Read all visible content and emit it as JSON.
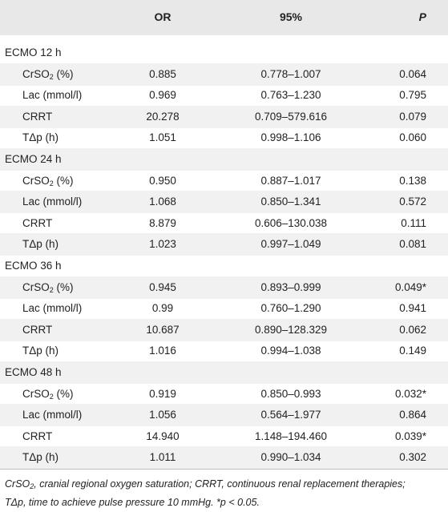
{
  "table": {
    "headers": {
      "or": "OR",
      "ci": "95%",
      "p": "P"
    },
    "rows": [
      {
        "kind": "group",
        "label": "ECMO 12 h"
      },
      {
        "kind": "sub",
        "label": "CrSO2 (%)",
        "or": "0.885",
        "ci": "0.778–1.007",
        "p": "0.064"
      },
      {
        "kind": "sub",
        "label": "Lac (mmol/l)",
        "or": "0.969",
        "ci": "0.763–1.230",
        "p": "0.795"
      },
      {
        "kind": "sub",
        "label": "CRRT",
        "or": "20.278",
        "ci": "0.709–579.616",
        "p": "0.079"
      },
      {
        "kind": "sub",
        "label": "TΔp (h)",
        "or": "1.051",
        "ci": "0.998–1.106",
        "p": "0.060"
      },
      {
        "kind": "group",
        "label": "ECMO 24 h"
      },
      {
        "kind": "sub",
        "label": "CrSO2 (%)",
        "or": "0.950",
        "ci": "0.887–1.017",
        "p": "0.138"
      },
      {
        "kind": "sub",
        "label": "Lac (mmol/l)",
        "or": "1.068",
        "ci": "0.850–1.341",
        "p": "0.572"
      },
      {
        "kind": "sub",
        "label": "CRRT",
        "or": "8.879",
        "ci": "0.606–130.038",
        "p": "0.111"
      },
      {
        "kind": "sub",
        "label": "TΔp (h)",
        "or": "1.023",
        "ci": "0.997–1.049",
        "p": "0.081"
      },
      {
        "kind": "group",
        "label": "ECMO 36 h"
      },
      {
        "kind": "sub",
        "label": "CrSO2 (%)",
        "or": "0.945",
        "ci": "0.893–0.999",
        "p": "0.049*"
      },
      {
        "kind": "sub",
        "label": "Lac (mmol/l)",
        "or": "0.99",
        "ci": "0.760–1.290",
        "p": "0.941"
      },
      {
        "kind": "sub",
        "label": "CRRT",
        "or": "10.687",
        "ci": "0.890–128.329",
        "p": "0.062"
      },
      {
        "kind": "sub",
        "label": "TΔp (h)",
        "or": "1.016",
        "ci": "0.994–1.038",
        "p": "0.149"
      },
      {
        "kind": "group",
        "label": "ECMO 48 h"
      },
      {
        "kind": "sub",
        "label": "CrSO2 (%)",
        "or": "0.919",
        "ci": "0.850–0.993",
        "p": "0.032*"
      },
      {
        "kind": "sub",
        "label": "Lac (mmol/l)",
        "or": "1.056",
        "ci": "0.564–1.977",
        "p": "0.864"
      },
      {
        "kind": "sub",
        "label": "CRRT",
        "or": "14.940",
        "ci": "1.148–194.460",
        "p": "0.039*"
      },
      {
        "kind": "sub",
        "label": "TΔp (h)",
        "or": "1.011",
        "ci": "0.990–1.034",
        "p": "0.302"
      }
    ]
  },
  "footnote": {
    "line1": "CrSO2, cranial regional oxygen saturation; CRRT, continuous renal replacement therapies;",
    "line2": "TΔp, time to achieve pulse pressure 10 mmHg. *p < 0.05."
  }
}
